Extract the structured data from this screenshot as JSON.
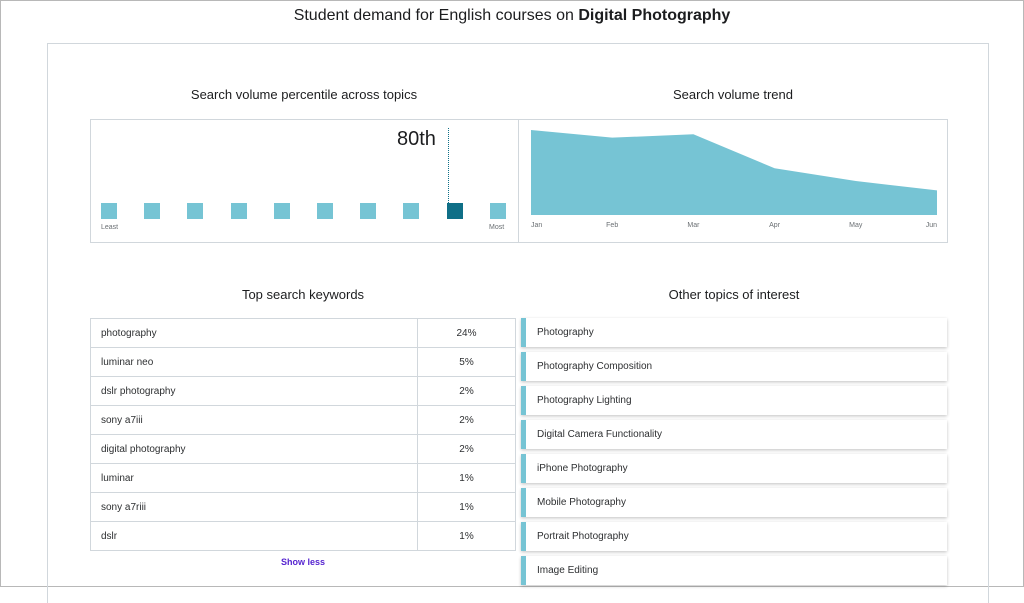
{
  "title": {
    "prefix": "Student demand for English courses on ",
    "topic": "Digital Photography"
  },
  "percentile": {
    "heading": "Search volume percentile across topics",
    "value_label": "80th",
    "value": 80,
    "least_label": "Least",
    "most_label": "Most",
    "active_index": 8,
    "square_count": 10
  },
  "trend": {
    "heading": "Search volume trend",
    "months": [
      "Jan",
      "Feb",
      "Mar",
      "Apr",
      "May",
      "Jun"
    ]
  },
  "keywords": {
    "heading": "Top search keywords",
    "rows": [
      {
        "keyword": "photography",
        "share": "24%"
      },
      {
        "keyword": "luminar neo",
        "share": "5%"
      },
      {
        "keyword": "dslr photography",
        "share": "2%"
      },
      {
        "keyword": "sony a7iii",
        "share": "2%"
      },
      {
        "keyword": "digital photography",
        "share": "2%"
      },
      {
        "keyword": "luminar",
        "share": "1%"
      },
      {
        "keyword": "sony a7riii",
        "share": "1%"
      },
      {
        "keyword": "dslr",
        "share": "1%"
      }
    ],
    "show_less_label": "Show less"
  },
  "topics": {
    "heading": "Other topics of interest",
    "items": [
      "Photography",
      "Photography Composition",
      "Photography Lighting",
      "Digital Camera Functionality",
      "iPhone Photography",
      "Mobile Photography",
      "Portrait Photography",
      "Image Editing"
    ]
  },
  "colors": {
    "accent": "#76c4d4",
    "accent_dark": "#0f6f87",
    "link": "#5624d0",
    "border": "#d1d7dc"
  },
  "chart_data": {
    "type": "area",
    "title": "Search volume trend",
    "x": [
      "Jan",
      "Feb",
      "Mar",
      "Apr",
      "May",
      "Jun"
    ],
    "values": [
      100,
      91,
      95,
      55,
      40,
      29
    ],
    "ylim": [
      0,
      100
    ],
    "grid": false,
    "legend": "none"
  }
}
